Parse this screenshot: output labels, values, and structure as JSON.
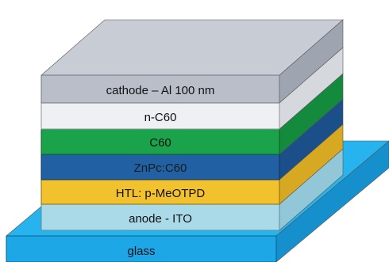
{
  "diagram": {
    "layers": [
      {
        "key": "glass",
        "label": "glass",
        "front": "#1ea7e6",
        "side": "#1590cc",
        "top": "#27b4ee"
      },
      {
        "key": "anode",
        "label": "anode  - ITO",
        "front": "#aad9e8",
        "side": "#92c7d8",
        "top": "#b9e1ee"
      },
      {
        "key": "htl",
        "label": "HTL: p-MeOTPD",
        "front": "#f2c12e",
        "side": "#d7a821",
        "top": "#f5cb4b"
      },
      {
        "key": "znpc",
        "label": "ZnPc:C60",
        "front": "#2060a3",
        "side": "#1a4f89",
        "top": "#2a6db0"
      },
      {
        "key": "c60",
        "label": "C60",
        "front": "#1aa34a",
        "side": "#138a3c",
        "top": "#24b055"
      },
      {
        "key": "nc60",
        "label": "n-C60",
        "front": "#eef0f3",
        "side": "#d5d8dd",
        "top": "#f5f6f8"
      },
      {
        "key": "cathode",
        "label": "cathode   – Al 100 nm",
        "front": "#b9bec9",
        "side": "#9ea4b0",
        "top": "#c7ccd5"
      }
    ]
  }
}
